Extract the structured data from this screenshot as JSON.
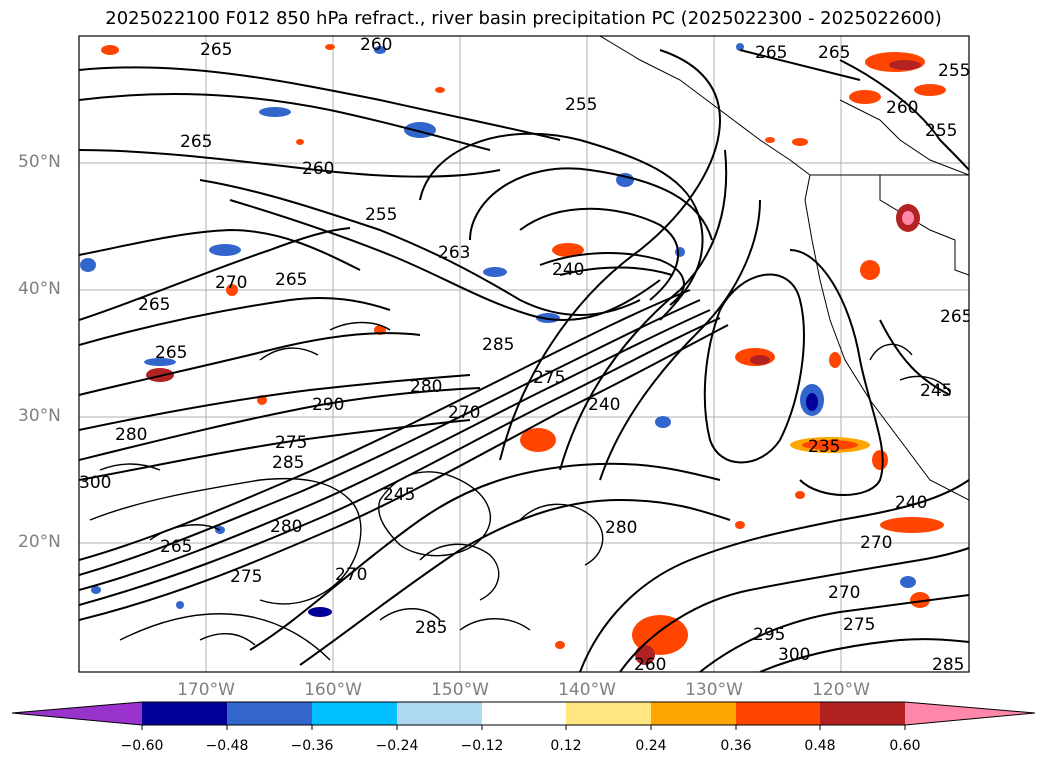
{
  "title": "2025022100 F012 850 hPa refract., river basin precipitation PC (2025022300 - 2025022600)",
  "lat_labels": [
    "50°N",
    "40°N",
    "30°N",
    "20°N"
  ],
  "lon_labels": [
    "170°W",
    "160°W",
    "150°W",
    "140°W",
    "130°W",
    "120°W"
  ],
  "colorbar": {
    "ticks": [
      "−0.60",
      "−0.48",
      "−0.36",
      "−0.24",
      "−0.12",
      "0.12",
      "0.24",
      "0.36",
      "0.48",
      "0.60"
    ],
    "colors": [
      "#9933cc",
      "#000099",
      "#3366cc",
      "#00bfff",
      "#add8f0",
      "#ffffff",
      "#ffe680",
      "#ffa500",
      "#ff4500",
      "#b22222",
      "#ff88aa"
    ]
  },
  "contour_labels": [
    "265",
    "260",
    "265",
    "255",
    "265",
    "255",
    "260",
    "255",
    "265",
    "260",
    "270",
    "265",
    "255",
    "263",
    "240",
    "265",
    "265",
    "285",
    "275",
    "240",
    "280",
    "290",
    "270",
    "280",
    "275",
    "285",
    "300",
    "245",
    "280",
    "275",
    "270",
    "235",
    "240",
    "280",
    "265",
    "270",
    "270",
    "275",
    "295",
    "300",
    "285",
    "285",
    "260",
    "245",
    "265"
  ]
}
